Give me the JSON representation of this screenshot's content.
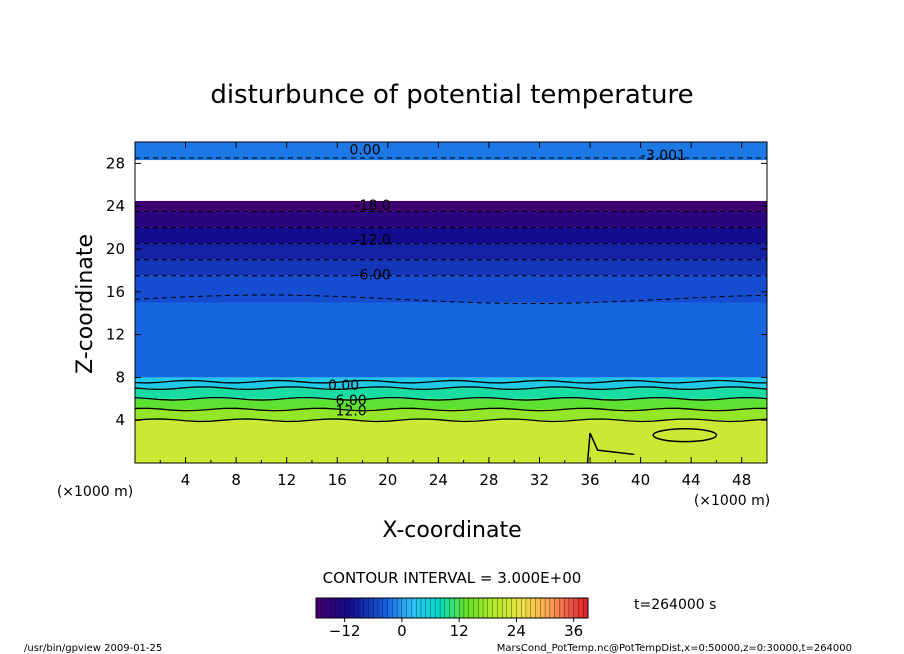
{
  "chart_data": {
    "type": "heatmap",
    "title": "disturbunce of potential temperature",
    "xlabel": "X-coordinate",
    "ylabel": "Z-coordinate",
    "x_unit_left": "(×1000 m)",
    "x_unit_right": "(×1000 m)",
    "xlim": [
      0,
      50
    ],
    "ylim": [
      0,
      30
    ],
    "x_ticks": [
      "4",
      "8",
      "12",
      "16",
      "20",
      "24",
      "28",
      "32",
      "36",
      "40",
      "44",
      "48"
    ],
    "x_tick_values": [
      4,
      8,
      12,
      16,
      20,
      24,
      28,
      32,
      36,
      40,
      44,
      48
    ],
    "y_ticks": [
      "4",
      "8",
      "12",
      "16",
      "20",
      "24",
      "28"
    ],
    "y_tick_values": [
      4,
      8,
      12,
      16,
      20,
      24,
      28
    ],
    "grid": false,
    "contour_interval_text": "CONTOUR INTERVAL = 3.000E+00",
    "time_label": "t=264000 s",
    "colorbar": {
      "min": -18,
      "max": 39,
      "tick_labels": [
        "−12",
        "0",
        "12",
        "24",
        "36"
      ],
      "tick_values": [
        -12,
        0,
        12,
        24,
        36
      ]
    },
    "contour_labels": [
      {
        "text": "0.00",
        "x": 18.2,
        "z": 29.3
      },
      {
        "text": "-18.0",
        "x": 18.8,
        "z": 24.1
      },
      {
        "text": "-12.0",
        "x": 18.8,
        "z": 20.9
      },
      {
        "text": "-6.00",
        "x": 18.8,
        "z": 17.6
      },
      {
        "text": "-3.001",
        "x": 41.8,
        "z": 28.8
      },
      {
        "text": "0.00",
        "x": 16.5,
        "z": 7.3
      },
      {
        "text": "6.00",
        "x": 17.1,
        "z": 5.9
      },
      {
        "text": "12.0",
        "x": 17.1,
        "z": 4.9
      }
    ],
    "layers": [
      {
        "z_min": 0.0,
        "z_max": 4.0,
        "value": 22
      },
      {
        "z_min": 4.0,
        "z_max": 5.0,
        "value": 17
      },
      {
        "z_min": 5.0,
        "z_max": 6.0,
        "value": 13
      },
      {
        "z_min": 6.0,
        "z_max": 7.0,
        "value": 9
      },
      {
        "z_min": 7.0,
        "z_max": 8.0,
        "value": 4
      },
      {
        "z_min": 8.0,
        "z_max": 15.0,
        "value": -3
      },
      {
        "z_min": 15.0,
        "z_max": 17.5,
        "value": -5
      },
      {
        "z_min": 17.5,
        "z_max": 19.0,
        "value": -7
      },
      {
        "z_min": 19.0,
        "z_max": 20.5,
        "value": -9
      },
      {
        "z_min": 20.5,
        "z_max": 22.0,
        "value": -11
      },
      {
        "z_min": 22.0,
        "z_max": 23.5,
        "value": -14
      },
      {
        "z_min": 23.5,
        "z_max": 24.5,
        "value": -17
      },
      {
        "z_min": 28.3,
        "z_max": 30.0,
        "value": -2
      }
    ],
    "missing_region": {
      "z_min": 24.5,
      "z_max": 28.3
    }
  },
  "footer": {
    "left": "/usr/bin/gpview  2009-01-25",
    "right": "MarsCond_PotTemp.nc@PotTempDist,x=0:50000,z=0:30000,t=264000"
  }
}
